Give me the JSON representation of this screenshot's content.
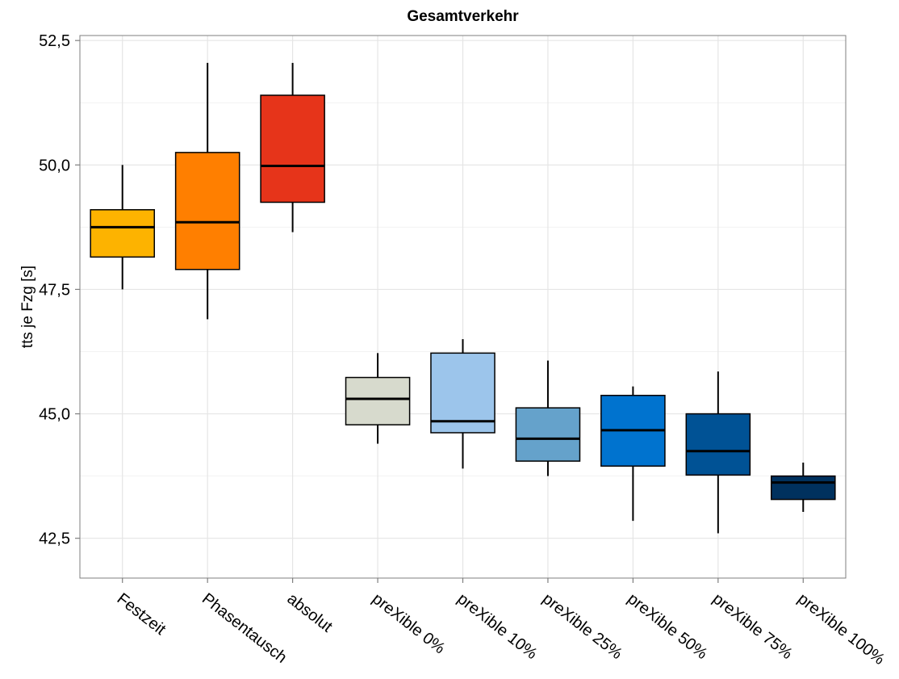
{
  "chart_data": {
    "type": "boxplot",
    "title": "Gesamtverkehr",
    "xlabel": "",
    "ylabel": "tts je Fzg [s]",
    "ylim": [
      41.7,
      52.6
    ],
    "yticks": [
      42.5,
      45.0,
      47.5,
      50.0,
      52.5
    ],
    "ytick_labels": [
      "42,5",
      "45,0",
      "47,5",
      "50,0",
      "52,5"
    ],
    "grid": true,
    "legend": "none",
    "categories": [
      "Festzeit",
      "Phasentausch",
      "absolut",
      "preXible 0%",
      "preXible 10%",
      "preXible 25%",
      "preXible 50%",
      "preXible 75%",
      "preXible 100%"
    ],
    "boxes": [
      {
        "min": 47.5,
        "q1": 48.15,
        "median": 48.75,
        "q3": 49.1,
        "max": 50.0,
        "color": "#FDB300"
      },
      {
        "min": 46.9,
        "q1": 47.9,
        "median": 48.85,
        "q3": 50.25,
        "max": 52.05,
        "color": "#FF7F00"
      },
      {
        "min": 48.65,
        "q1": 49.25,
        "median": 49.98,
        "q3": 51.4,
        "max": 52.05,
        "color": "#E6341A"
      },
      {
        "min": 44.4,
        "q1": 44.78,
        "median": 45.3,
        "q3": 45.73,
        "max": 46.22,
        "color": "#D7DACD"
      },
      {
        "min": 43.9,
        "q1": 44.62,
        "median": 44.85,
        "q3": 46.22,
        "max": 46.5,
        "color": "#9CC5EB"
      },
      {
        "min": 43.75,
        "q1": 44.05,
        "median": 44.5,
        "q3": 45.12,
        "max": 46.07,
        "color": "#65A2CB"
      },
      {
        "min": 42.85,
        "q1": 43.95,
        "median": 44.67,
        "q3": 45.37,
        "max": 45.55,
        "color": "#0073CF"
      },
      {
        "min": 42.6,
        "q1": 43.77,
        "median": 44.25,
        "q3": 45.0,
        "max": 45.85,
        "color": "#005295"
      },
      {
        "min": 43.03,
        "q1": 43.28,
        "median": 43.62,
        "q3": 43.75,
        "max": 44.02,
        "color": "#00315E"
      }
    ]
  }
}
